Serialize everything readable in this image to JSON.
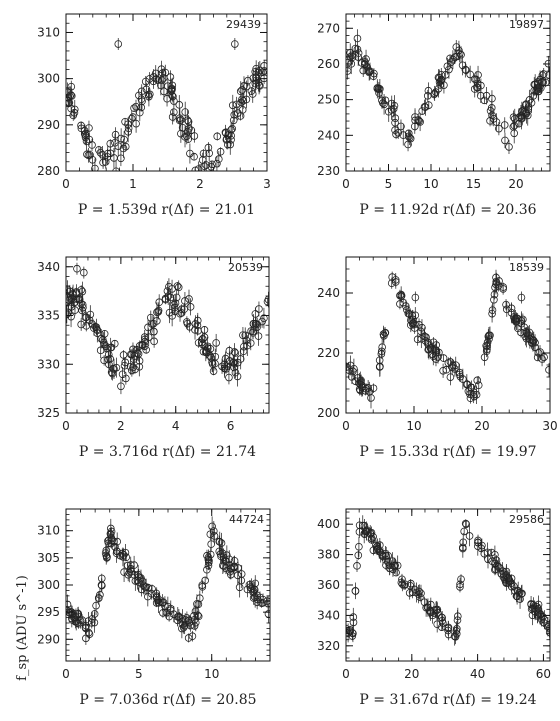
{
  "figure": {
    "y_axis_label": "f_sp (ADU s^-1)"
  },
  "chart_data": [
    {
      "type": "scatter",
      "id": "29439",
      "caption": {
        "period": "P = 1.539d",
        "mag": "r(Δf) = 21.01"
      },
      "xlim": [
        0,
        3
      ],
      "ylim": [
        280,
        314
      ],
      "xticks": [
        0,
        1,
        2,
        3
      ],
      "yticks": [
        280,
        290,
        300,
        310
      ],
      "shape": "sine",
      "period": 1.539,
      "min_phase": 0.38,
      "lo": 282,
      "hi": 300,
      "jitter": 3.5,
      "n": 170,
      "outliers": [
        [
          0.78,
          307.5
        ],
        [
          2.52,
          307.5
        ]
      ]
    },
    {
      "type": "scatter",
      "id": "19897",
      "caption": {
        "period": "P = 11.92d",
        "mag": "r(Δf) = 20.36"
      },
      "xlim": [
        0,
        24
      ],
      "ylim": [
        230,
        274
      ],
      "xticks": [
        0,
        5,
        10,
        15,
        20
      ],
      "yticks": [
        230,
        240,
        250,
        260,
        270
      ],
      "shape": "triangle",
      "period": 11.92,
      "max_phase": 0.1,
      "lo": 239,
      "hi": 264,
      "jitter": 3,
      "n": 160,
      "outliers": []
    },
    {
      "type": "scatter",
      "id": "20539",
      "caption": {
        "period": "P = 3.716d",
        "mag": "r(Δf) = 21.74"
      },
      "xlim": [
        0,
        7.4
      ],
      "ylim": [
        325,
        341
      ],
      "xticks": [
        0,
        2,
        4,
        6
      ],
      "yticks": [
        325,
        330,
        335,
        340
      ],
      "shape": "sine",
      "period": 3.716,
      "min_phase": 0.55,
      "lo": 329.5,
      "hi": 336.5,
      "jitter": 1.8,
      "n": 200,
      "outliers": [
        [
          0.4,
          339.8
        ],
        [
          0.65,
          339.4
        ]
      ]
    },
    {
      "type": "scatter",
      "id": "18539",
      "caption": {
        "period": "P = 15.33d",
        "mag": "r(Δf) = 19.97"
      },
      "xlim": [
        0,
        30
      ],
      "ylim": [
        200,
        252
      ],
      "xticks": [
        0,
        10,
        20,
        30
      ],
      "yticks": [
        200,
        220,
        240
      ],
      "shape": "sawtooth",
      "period": 15.33,
      "max_phase": 0.45,
      "lo": 206,
      "hi": 246,
      "jitter": 3,
      "n": 170,
      "outliers": [
        [
          10.2,
          238.5
        ],
        [
          25.8,
          238.5
        ]
      ]
    },
    {
      "type": "scatter",
      "id": "44724",
      "caption": {
        "period": "P = 7.036d",
        "mag": "r(Δf) = 20.85"
      },
      "xlim": [
        0,
        14
      ],
      "ylim": [
        286,
        314
      ],
      "xticks": [
        0,
        5,
        10
      ],
      "yticks": [
        290,
        295,
        300,
        305,
        310
      ],
      "shape": "sawtooth",
      "period": 7.036,
      "max_phase": 0.43,
      "lo": 292,
      "hi": 310,
      "jitter": 1.8,
      "n": 200,
      "outliers": []
    },
    {
      "type": "scatter",
      "id": "29586",
      "caption": {
        "period": "P = 31.67d",
        "mag": "r(Δf) = 19.24"
      },
      "xlim": [
        0,
        62
      ],
      "ylim": [
        310,
        410
      ],
      "xticks": [
        0,
        20,
        40,
        60
      ],
      "yticks": [
        320,
        340,
        360,
        380,
        400
      ],
      "shape": "fastrise",
      "period": 31.67,
      "max_phase": 0.14,
      "lo": 326,
      "hi": 402,
      "jitter": 5,
      "n": 190,
      "outliers": []
    }
  ]
}
